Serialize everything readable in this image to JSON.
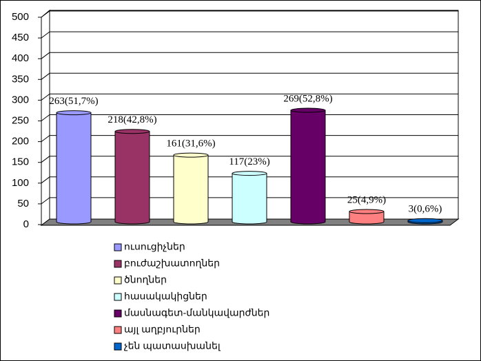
{
  "chart_data": {
    "type": "bar",
    "categories": [
      "ուսուցիչներ",
      "բուժաշխատողներ",
      "ծնողներ",
      "հասակակիցներ",
      "մասնագետ-մանկավարժներ",
      "այլ աղբյուրներ",
      "չեն պատասխանել"
    ],
    "values": [
      263,
      218,
      161,
      117,
      269,
      25,
      3
    ],
    "value_labels": [
      "263(51,7%)",
      "218(42,8%)",
      "161(31,6%)",
      "117(23%)",
      "269(52,8%)",
      "25(4,9%)",
      "3(0,6%)"
    ],
    "colors": [
      "#9999ff",
      "#993366",
      "#ffffcc",
      "#ccffff",
      "#660066",
      "#ff8080",
      "#0066cc"
    ],
    "ylim": [
      0,
      500
    ],
    "yticks": [
      0,
      50,
      100,
      150,
      200,
      250,
      300,
      350,
      400,
      450,
      500
    ],
    "grid": true,
    "legend": "bottom"
  }
}
